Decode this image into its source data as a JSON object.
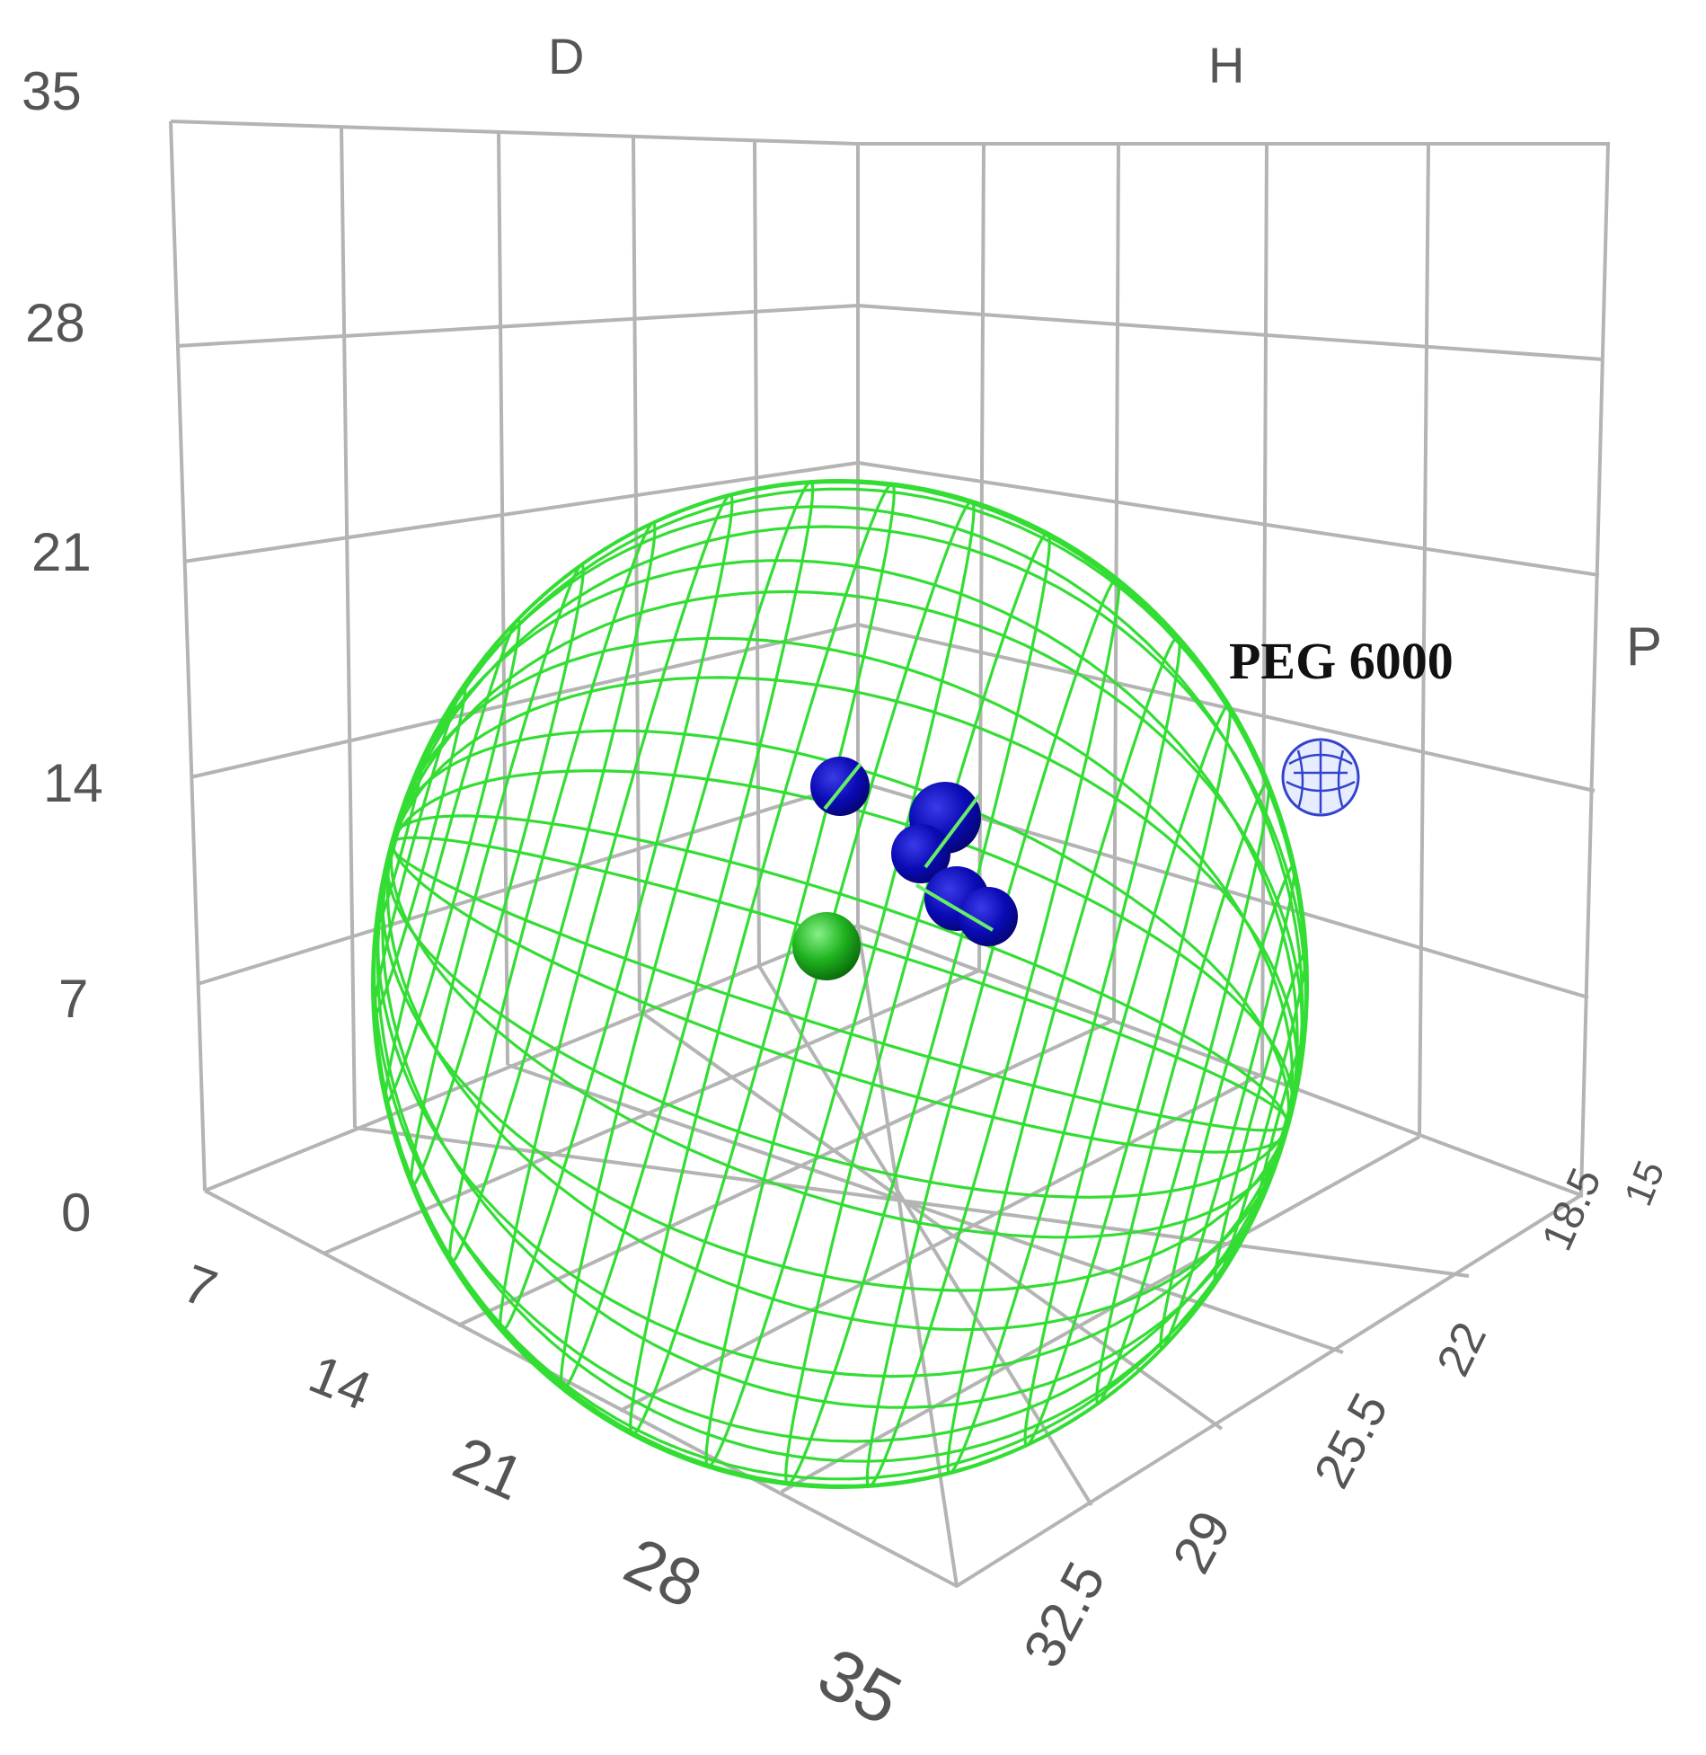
{
  "chart_data": {
    "type": "scatter",
    "projection": "3d",
    "axes": {
      "vertical": {
        "ticks": [
          "0",
          "7",
          "14",
          "21",
          "28",
          "35"
        ],
        "range": [
          0,
          35
        ]
      },
      "left": {
        "ticks": [
          "7",
          "14",
          "21",
          "28",
          "35"
        ],
        "range": [
          0,
          35
        ]
      },
      "right": {
        "ticks": [
          "32.5",
          "29",
          "25.5",
          "22",
          "18.5",
          "15"
        ],
        "range": [
          15,
          32.5
        ]
      },
      "labels": {
        "d": "D",
        "h": "H",
        "p": "P"
      }
    },
    "grid": true,
    "solubility_sphere": {
      "color": "#33dd33",
      "style": "wireframe"
    },
    "points": [
      {
        "label": "",
        "color": "#0a0ab4",
        "group": "blue"
      },
      {
        "label": "",
        "color": "#0a0ab4",
        "group": "blue"
      },
      {
        "label": "",
        "color": "#0a0ab4",
        "group": "blue"
      },
      {
        "label": "",
        "color": "#0a0ab4",
        "group": "blue"
      },
      {
        "label": "",
        "color": "#0a0ab4",
        "group": "blue"
      },
      {
        "label": "",
        "color": "#1fb31f",
        "group": "sphere-center"
      },
      {
        "label": "PEG 6000",
        "color": "#3344cc",
        "group": "outside",
        "style": "wireframe"
      }
    ],
    "annotations": [
      "PEG 6000"
    ]
  }
}
